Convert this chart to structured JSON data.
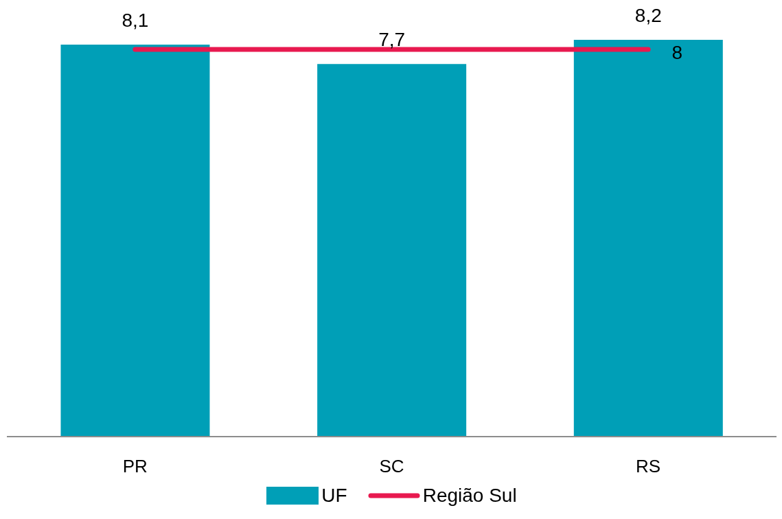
{
  "chart_data": {
    "type": "bar",
    "categories": [
      "PR",
      "SC",
      "RS"
    ],
    "series": [
      {
        "name": "UF",
        "color": "#009fb7",
        "values": [
          8.1,
          7.7,
          8.2
        ],
        "value_labels": [
          "8,1",
          "7,7",
          "8,2"
        ]
      },
      {
        "name": "Região Sul",
        "type": "line",
        "color": "#e8194f",
        "values": [
          8,
          8,
          8
        ],
        "value_labels": [
          null,
          null,
          "8"
        ]
      }
    ],
    "legend": "bottom",
    "grid": false,
    "marker": "none"
  }
}
